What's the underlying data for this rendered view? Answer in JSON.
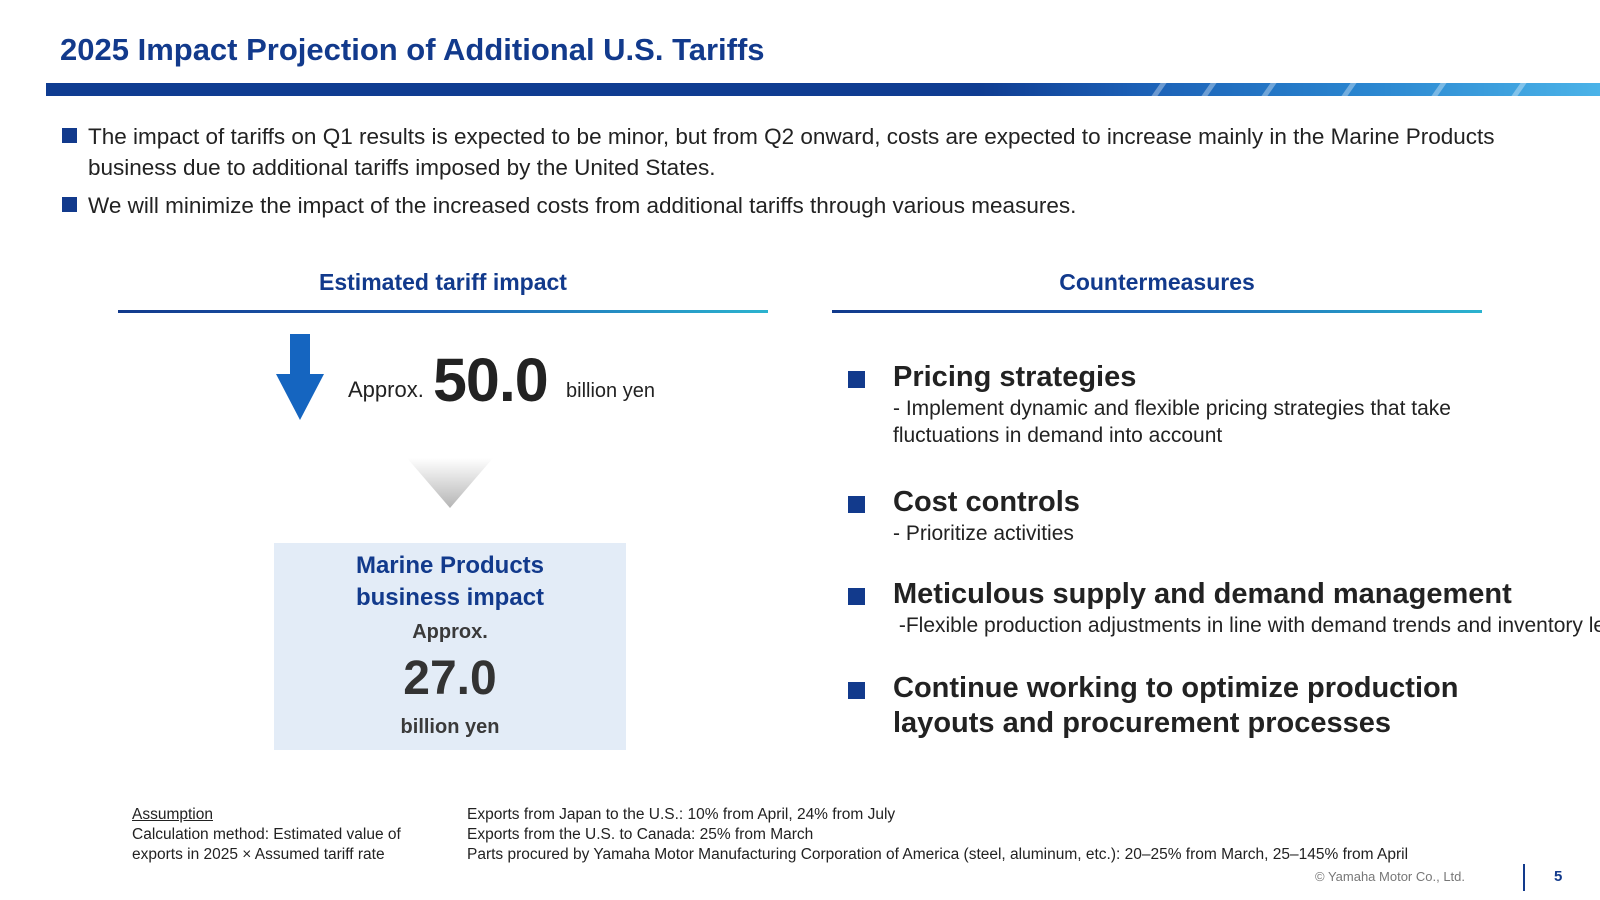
{
  "header": {
    "title": "2025 Impact Projection of Additional U.S. Tariffs"
  },
  "bullets": [
    "The impact of tariffs on Q1 results is expected to be minor, but from Q2 onward, costs are expected to increase mainly in the Marine Products business due to additional tariffs imposed by the United States.",
    "We will minimize the impact of the increased costs from additional tariffs through various measures."
  ],
  "impact": {
    "heading": "Estimated tariff impact",
    "approx_label": "Approx.",
    "total_value": "50.0",
    "total_unit": "billion yen",
    "marine": {
      "title_line1": "Marine Products",
      "title_line2": "business impact",
      "approx_label": "Approx.",
      "value": "27.0",
      "unit": "billion yen"
    }
  },
  "countermeasures": {
    "heading": "Countermeasures",
    "items": [
      {
        "title": "Pricing strategies",
        "desc": "- Implement dynamic and flexible pricing strategies that take fluctuations in demand into account"
      },
      {
        "title": "Cost controls",
        "desc": "- Prioritize activities"
      },
      {
        "title": "Meticulous supply and demand management",
        "desc": " -Flexible production adjustments in line with demand trends and inventory levels"
      },
      {
        "title": "Continue working to optimize production layouts and procurement processes",
        "desc": ""
      }
    ]
  },
  "footnote": {
    "assumption_label": "Assumption",
    "method_line1": "Calculation method: Estimated value of",
    "method_line2": "exports in 2025 × Assumed tariff rate",
    "rates": [
      "Exports from Japan to the U.S.: 10% from April, 24% from July",
      "Exports from the U.S. to Canada: 25% from March",
      "Parts procured by Yamaha Motor Manufacturing Corporation of America (steel, aluminum, etc.): 20–25% from March, 25–145% from April"
    ]
  },
  "footer": {
    "copyright": "© Yamaha Motor Co., Ltd.",
    "page_number": "5"
  },
  "colors": {
    "brand_navy": "#123a8c",
    "box_background": "#e3ecf7",
    "arrow_blue": "#1565c0"
  },
  "icons": {
    "arrow": "down-arrow-icon",
    "chevron": "chevron-down-icon",
    "bullet": "square-bullet-icon"
  }
}
